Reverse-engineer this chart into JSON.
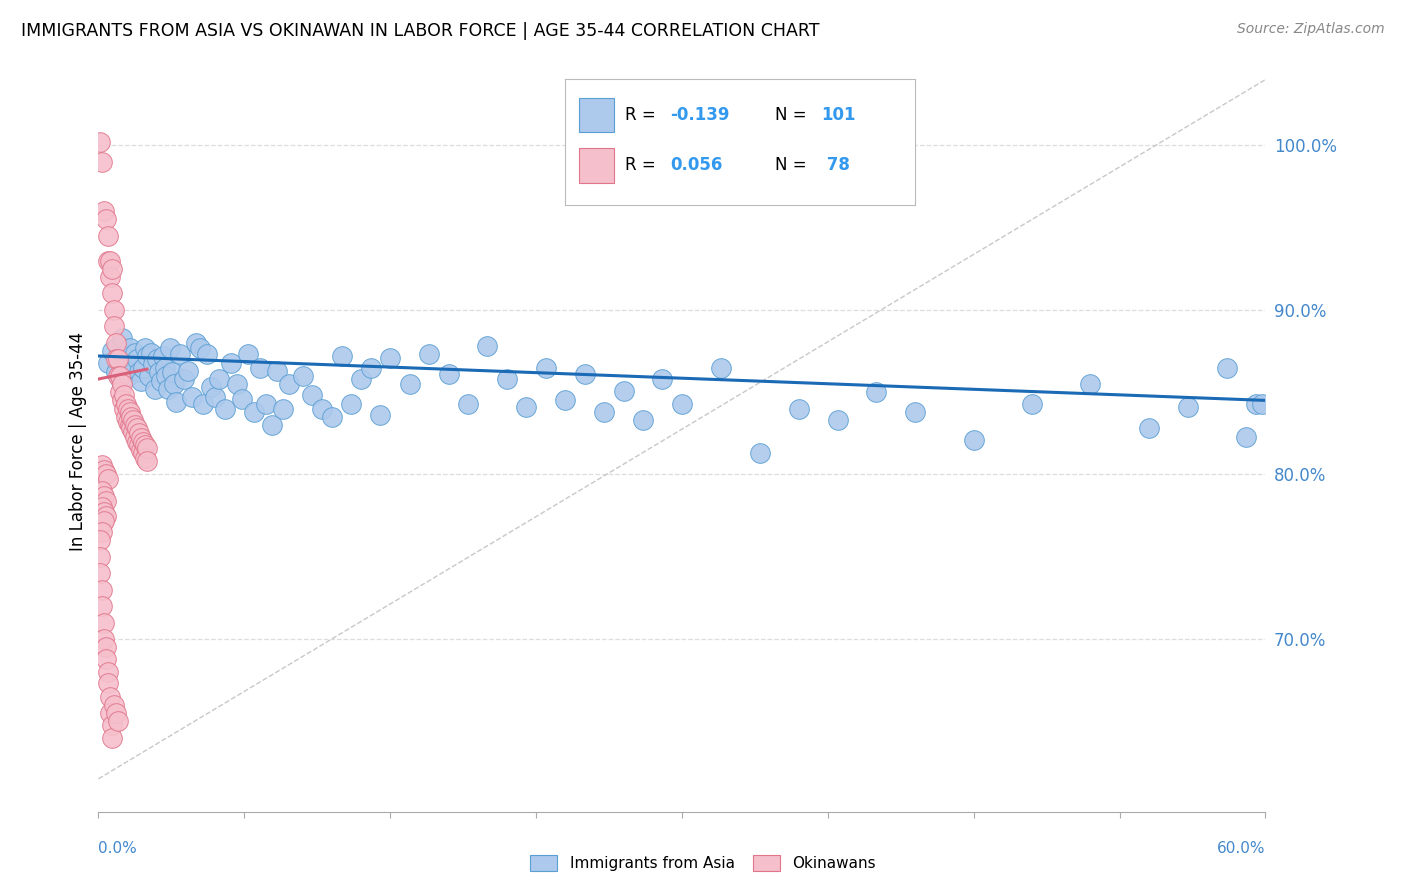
{
  "title": "IMMIGRANTS FROM ASIA VS OKINAWAN IN LABOR FORCE | AGE 35-44 CORRELATION CHART",
  "source": "Source: ZipAtlas.com",
  "ylabel": "In Labor Force | Age 35-44",
  "yticks": [
    0.7,
    0.8,
    0.9,
    1.0
  ],
  "ytick_labels": [
    "70.0%",
    "80.0%",
    "90.0%",
    "100.0%"
  ],
  "xlim": [
    0.0,
    0.6
  ],
  "ylim": [
    0.595,
    1.045
  ],
  "blue_color": "#adc9ec",
  "blue_edge": "#5a9fd4",
  "pink_color": "#f5bfcc",
  "pink_edge": "#e0758a",
  "trend_blue_color": "#1a6ab5",
  "trend_pink_color": "#d9607a",
  "ref_line_color": "#c8c8c8",
  "background_color": "#ffffff",
  "grid_color": "#dddddd",
  "blue_scatter_x": [
    0.005,
    0.007,
    0.009,
    0.01,
    0.011,
    0.012,
    0.013,
    0.014,
    0.015,
    0.016,
    0.018,
    0.019,
    0.02,
    0.021,
    0.022,
    0.023,
    0.024,
    0.025,
    0.026,
    0.027,
    0.028,
    0.029,
    0.03,
    0.031,
    0.032,
    0.033,
    0.034,
    0.035,
    0.036,
    0.037,
    0.038,
    0.039,
    0.04,
    0.042,
    0.044,
    0.046,
    0.048,
    0.05,
    0.052,
    0.054,
    0.056,
    0.058,
    0.06,
    0.062,
    0.065,
    0.068,
    0.071,
    0.074,
    0.077,
    0.08,
    0.083,
    0.086,
    0.089,
    0.092,
    0.095,
    0.098,
    0.105,
    0.11,
    0.115,
    0.12,
    0.125,
    0.13,
    0.135,
    0.14,
    0.145,
    0.15,
    0.16,
    0.17,
    0.18,
    0.19,
    0.2,
    0.21,
    0.22,
    0.23,
    0.24,
    0.25,
    0.26,
    0.27,
    0.28,
    0.29,
    0.3,
    0.32,
    0.34,
    0.36,
    0.38,
    0.4,
    0.42,
    0.45,
    0.48,
    0.51,
    0.54,
    0.56,
    0.58,
    0.59,
    0.595,
    0.598
  ],
  "blue_scatter_y": [
    0.868,
    0.875,
    0.862,
    0.878,
    0.858,
    0.883,
    0.872,
    0.867,
    0.86,
    0.877,
    0.867,
    0.874,
    0.87,
    0.862,
    0.857,
    0.865,
    0.877,
    0.872,
    0.86,
    0.874,
    0.867,
    0.852,
    0.87,
    0.862,
    0.857,
    0.872,
    0.865,
    0.86,
    0.852,
    0.877,
    0.862,
    0.855,
    0.844,
    0.873,
    0.858,
    0.863,
    0.847,
    0.88,
    0.877,
    0.843,
    0.873,
    0.853,
    0.847,
    0.858,
    0.84,
    0.868,
    0.855,
    0.846,
    0.873,
    0.838,
    0.865,
    0.843,
    0.83,
    0.863,
    0.84,
    0.855,
    0.86,
    0.848,
    0.84,
    0.835,
    0.872,
    0.843,
    0.858,
    0.865,
    0.836,
    0.871,
    0.855,
    0.873,
    0.861,
    0.843,
    0.878,
    0.858,
    0.841,
    0.865,
    0.845,
    0.861,
    0.838,
    0.851,
    0.833,
    0.858,
    0.843,
    0.865,
    0.813,
    0.84,
    0.833,
    0.85,
    0.838,
    0.821,
    0.843,
    0.855,
    0.828,
    0.841,
    0.865,
    0.823,
    0.843,
    0.843
  ],
  "pink_scatter_x": [
    0.001,
    0.002,
    0.003,
    0.004,
    0.005,
    0.005,
    0.006,
    0.006,
    0.007,
    0.007,
    0.008,
    0.008,
    0.009,
    0.009,
    0.01,
    0.01,
    0.011,
    0.011,
    0.012,
    0.012,
    0.013,
    0.013,
    0.014,
    0.014,
    0.015,
    0.015,
    0.016,
    0.016,
    0.017,
    0.017,
    0.018,
    0.018,
    0.019,
    0.019,
    0.02,
    0.02,
    0.021,
    0.021,
    0.022,
    0.022,
    0.023,
    0.023,
    0.024,
    0.024,
    0.025,
    0.025,
    0.002,
    0.003,
    0.004,
    0.005,
    0.002,
    0.003,
    0.004,
    0.002,
    0.003,
    0.002,
    0.004,
    0.003,
    0.002,
    0.001,
    0.001,
    0.001,
    0.002,
    0.002,
    0.003,
    0.003,
    0.004,
    0.004,
    0.005,
    0.005,
    0.006,
    0.006,
    0.007,
    0.007,
    0.008,
    0.009,
    0.01
  ],
  "pink_scatter_y": [
    1.002,
    0.99,
    0.96,
    0.955,
    0.945,
    0.93,
    0.93,
    0.92,
    0.925,
    0.91,
    0.9,
    0.89,
    0.88,
    0.87,
    0.87,
    0.86,
    0.86,
    0.85,
    0.855,
    0.845,
    0.848,
    0.84,
    0.843,
    0.835,
    0.84,
    0.832,
    0.838,
    0.83,
    0.835,
    0.828,
    0.833,
    0.826,
    0.83,
    0.823,
    0.828,
    0.82,
    0.825,
    0.818,
    0.822,
    0.815,
    0.82,
    0.813,
    0.818,
    0.81,
    0.816,
    0.808,
    0.806,
    0.803,
    0.8,
    0.797,
    0.79,
    0.787,
    0.784,
    0.78,
    0.777,
    0.77,
    0.775,
    0.772,
    0.765,
    0.76,
    0.75,
    0.74,
    0.73,
    0.72,
    0.71,
    0.7,
    0.695,
    0.688,
    0.68,
    0.673,
    0.665,
    0.655,
    0.648,
    0.64,
    0.66,
    0.655,
    0.65
  ]
}
